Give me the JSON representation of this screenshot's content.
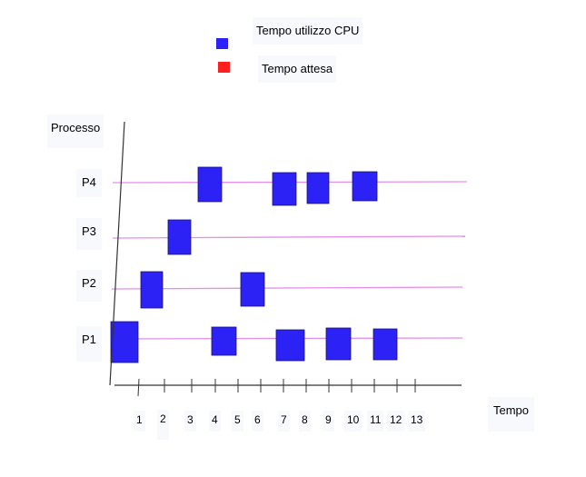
{
  "legend": {
    "cpu": {
      "label": "Tempo utilizzo CPU",
      "color": "#2c22f5"
    },
    "wait": {
      "label": "Tempo attesa",
      "color": "#ff1f1f"
    }
  },
  "axis": {
    "y_label": "Processo",
    "x_label": "Tempo",
    "ticks": [
      "1",
      "2",
      "3",
      "4",
      "5",
      "6",
      "7",
      "8",
      "9",
      "10",
      "11",
      "12",
      "13"
    ]
  },
  "processes": [
    {
      "name": "P4",
      "cpu_blocks": [
        "3",
        "6",
        "7",
        "9"
      ]
    },
    {
      "name": "P3",
      "cpu_blocks": [
        "2"
      ]
    },
    {
      "name": "P2",
      "cpu_blocks": [
        "1",
        "5"
      ]
    },
    {
      "name": "P1",
      "cpu_blocks": [
        "0",
        "3",
        "6",
        "8",
        "10"
      ]
    }
  ],
  "colors": {
    "cpu_block": "#2c22f5",
    "cpu_block_border": "#1a1370",
    "process_line": "#e58fe9",
    "axis": "#333333"
  }
}
